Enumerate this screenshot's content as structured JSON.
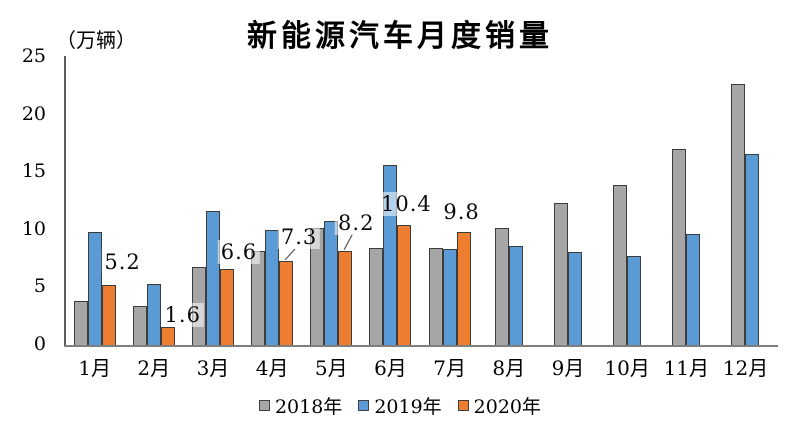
{
  "title": "新能源汽车月度销量",
  "unit_label": "（万辆）",
  "legend": {
    "items": [
      {
        "label": "2018年",
        "color": "#A6A6A6"
      },
      {
        "label": "2019年",
        "color": "#5B9BD5"
      },
      {
        "label": "2020年",
        "color": "#ED7D31"
      }
    ]
  },
  "chart_data": {
    "type": "bar",
    "title": "新能源汽车月度销量",
    "unit": "万辆",
    "categories": [
      "1月",
      "2月",
      "3月",
      "4月",
      "5月",
      "6月",
      "7月",
      "8月",
      "9月",
      "10月",
      "11月",
      "12月"
    ],
    "series": [
      {
        "name": "2018年",
        "color": "#A6A6A6",
        "values": [
          3.8,
          3.4,
          6.8,
          8.2,
          10.2,
          8.4,
          8.4,
          10.2,
          12.3,
          13.9,
          17.0,
          22.7
        ]
      },
      {
        "name": "2019年",
        "color": "#5B9BD5",
        "values": [
          9.8,
          5.3,
          11.6,
          10.0,
          10.8,
          15.6,
          8.3,
          8.6,
          8.1,
          7.7,
          9.6,
          16.6
        ]
      },
      {
        "name": "2020年",
        "color": "#ED7D31",
        "values": [
          5.2,
          1.6,
          6.6,
          7.3,
          8.2,
          10.4,
          9.8,
          null,
          null,
          null,
          null,
          null
        ],
        "data_labels": [
          "5.2",
          "1.6",
          "6.6",
          "7.3",
          "8.2",
          "10.4",
          "9.8"
        ]
      }
    ],
    "ylim": [
      0,
      25
    ],
    "yticks": [
      0,
      5,
      10,
      15,
      20,
      25
    ],
    "grid": false,
    "legend_position": "bottom",
    "bar_border_color": "#3c3c3c"
  }
}
